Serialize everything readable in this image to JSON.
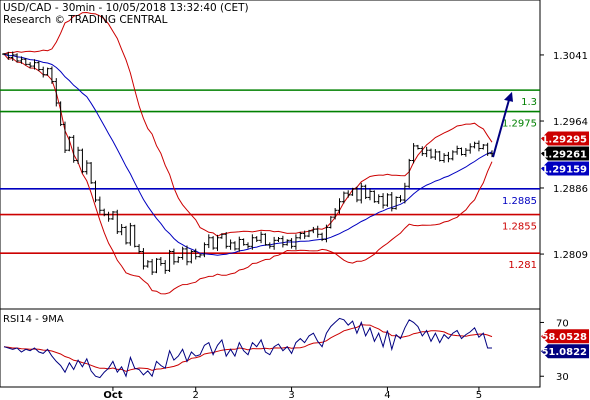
{
  "header": {
    "line1": "USD/CAD - 30min - 10/05/2018 13:32:40 (CET)",
    "line2": "Research © TRADING CENTRAL"
  },
  "chart_data": [
    {
      "type": "candlestick",
      "ylim": [
        1.2745,
        1.3105
      ],
      "y_ticks": [
        "1.3041",
        "1.2964",
        "1.2886",
        "1.2809"
      ],
      "x_ticks": [
        "Oct",
        "2",
        "3",
        "4",
        "5"
      ],
      "x_tick_bars": [
        25,
        44,
        66,
        88,
        109
      ],
      "grid": false,
      "levels": [
        {
          "name": "1.3",
          "value": 1.3,
          "color": "#008000"
        },
        {
          "name": "1.2975",
          "value": 1.2975,
          "color": "#008000"
        },
        {
          "name": "1.2885",
          "value": 1.2885,
          "color": "#0000c0"
        },
        {
          "name": "1.2855",
          "value": 1.2855,
          "color": "#cc0000"
        },
        {
          "name": "1.281",
          "value": 1.281,
          "color": "#cc0000"
        }
      ],
      "price_tags": [
        {
          "label": "1.29295",
          "value": 1.29295,
          "color": "#cc0000"
        },
        {
          "label": "1.29261",
          "value": 1.29261,
          "color": "#000000"
        },
        {
          "label": "1.29159",
          "value": 1.29159,
          "color": "#0000c0"
        }
      ],
      "forecast_arrow": {
        "from": 1.2922,
        "to": 1.2998,
        "color": "#000080"
      },
      "close": [
        1.3042,
        1.3038,
        1.3041,
        1.3034,
        1.3036,
        1.303,
        1.3028,
        1.3032,
        1.3024,
        1.3018,
        1.3025,
        1.301,
        1.2985,
        1.296,
        1.293,
        1.2945,
        1.2918,
        1.293,
        1.2905,
        1.2915,
        1.2892,
        1.2872,
        1.286,
        1.2855,
        1.285,
        1.2858,
        1.2835,
        1.284,
        1.2822,
        1.2842,
        1.2818,
        1.2812,
        1.2795,
        1.28,
        1.2788,
        1.2803,
        1.2798,
        1.279,
        1.2812,
        1.28,
        1.2805,
        1.2815,
        1.28,
        1.2812,
        1.2806,
        1.2808,
        1.282,
        1.2828,
        1.2816,
        1.2828,
        1.2832,
        1.2818,
        1.2822,
        1.2815,
        1.2826,
        1.282,
        1.2818,
        1.2828,
        1.2825,
        1.2832,
        1.282,
        1.2818,
        1.2825,
        1.2827,
        1.282,
        1.2825,
        1.2818,
        1.2828,
        1.2833,
        1.283,
        1.2836,
        1.2838,
        1.2832,
        1.2826,
        1.284,
        1.2852,
        1.286,
        1.287,
        1.288,
        1.2878,
        1.2885,
        1.2872,
        1.2888,
        1.2875,
        1.2882,
        1.287,
        1.2876,
        1.2866,
        1.2878,
        1.2862,
        1.2875,
        1.2872,
        1.2888,
        1.2918,
        1.2935,
        1.2932,
        1.2926,
        1.293,
        1.2922,
        1.2928,
        1.2918,
        1.2924,
        1.292,
        1.2928,
        1.2932,
        1.2925,
        1.293,
        1.2934,
        1.2938,
        1.2932,
        1.2936,
        1.2926,
        1.2926
      ],
      "bands": {
        "upper_color": "#cc0000",
        "lower_color": "#cc0000",
        "ma_color": "#0000c0"
      }
    },
    {
      "type": "line",
      "title": "RSI14 - 9MA",
      "ylim": [
        22,
        80
      ],
      "y_ticks": [
        "70",
        "30"
      ],
      "tick_values": [
        70,
        30
      ],
      "series": [
        {
          "name": "RSI14",
          "color": "#000080",
          "last_label": "51.0822",
          "last_value": 51.0822
        },
        {
          "name": "9MA",
          "color": "#cc0000",
          "last_label": "58.0528",
          "last_value": 58.0528
        }
      ],
      "rsi": [
        52,
        51,
        50,
        51,
        48,
        50,
        49,
        51,
        48,
        47,
        50,
        45,
        41,
        38,
        33,
        40,
        35,
        42,
        37,
        43,
        34,
        30,
        29,
        33,
        36,
        41,
        33,
        37,
        30,
        44,
        36,
        35,
        31,
        34,
        30,
        41,
        38,
        36,
        49,
        42,
        45,
        50,
        41,
        48,
        45,
        46,
        53,
        55,
        46,
        53,
        57,
        45,
        50,
        45,
        55,
        49,
        46,
        55,
        52,
        57,
        48,
        46,
        52,
        54,
        49,
        52,
        47,
        55,
        58,
        55,
        60,
        62,
        56,
        52,
        62,
        67,
        70,
        73,
        72,
        68,
        71,
        62,
        70,
        60,
        66,
        56,
        62,
        52,
        64,
        50,
        61,
        58,
        66,
        72,
        70,
        67,
        60,
        64,
        56,
        62,
        55,
        61,
        58,
        62,
        64,
        58,
        61,
        63,
        66,
        59,
        62,
        51,
        51
      ]
    }
  ]
}
